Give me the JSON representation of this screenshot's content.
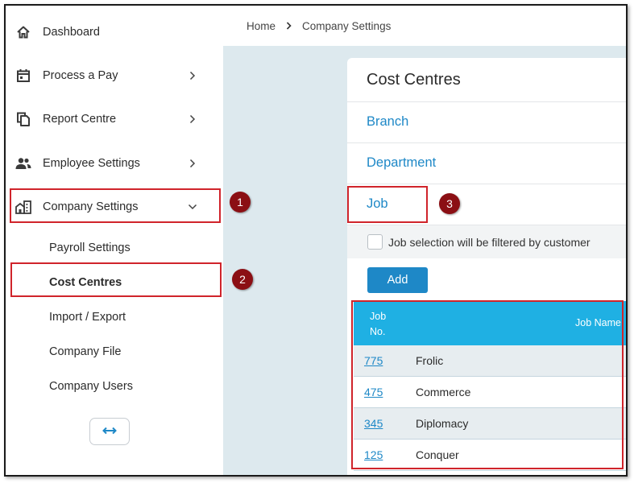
{
  "sidebar": {
    "items": [
      {
        "label": "Dashboard",
        "icon": "home-icon"
      },
      {
        "label": "Process a Pay",
        "icon": "calendar-icon"
      },
      {
        "label": "Report Centre",
        "icon": "documents-icon"
      },
      {
        "label": "Employee Settings",
        "icon": "people-icon"
      },
      {
        "label": "Company Settings",
        "icon": "building-icon"
      }
    ],
    "subitems": [
      {
        "label": "Payroll Settings"
      },
      {
        "label": "Cost Centres"
      },
      {
        "label": "Import / Export"
      },
      {
        "label": "Company File"
      },
      {
        "label": "Company Users"
      }
    ],
    "toggle_icon": "expand-arrows-icon"
  },
  "breadcrumb": {
    "home": "Home",
    "current": "Company Settings"
  },
  "card": {
    "title": "Cost Centres",
    "links": [
      "Branch",
      "Department",
      "Job"
    ],
    "filter_label": "Job selection will be filtered by customer",
    "add_label": "Add",
    "table": {
      "headers": {
        "job_no": "Job No.",
        "job_name": "Job Name"
      },
      "rows": [
        {
          "no": "775",
          "name": "Frolic"
        },
        {
          "no": "475",
          "name": "Commerce"
        },
        {
          "no": "345",
          "name": "Diplomacy"
        },
        {
          "no": "125",
          "name": "Conquer"
        }
      ]
    }
  },
  "annotations": [
    "1",
    "2",
    "3"
  ],
  "colors": {
    "accent": "#1e88c7",
    "table_header": "#1fb0e3",
    "highlight": "#d0242b",
    "badge": "#8b0f14",
    "main_bg": "#dde9ee"
  }
}
